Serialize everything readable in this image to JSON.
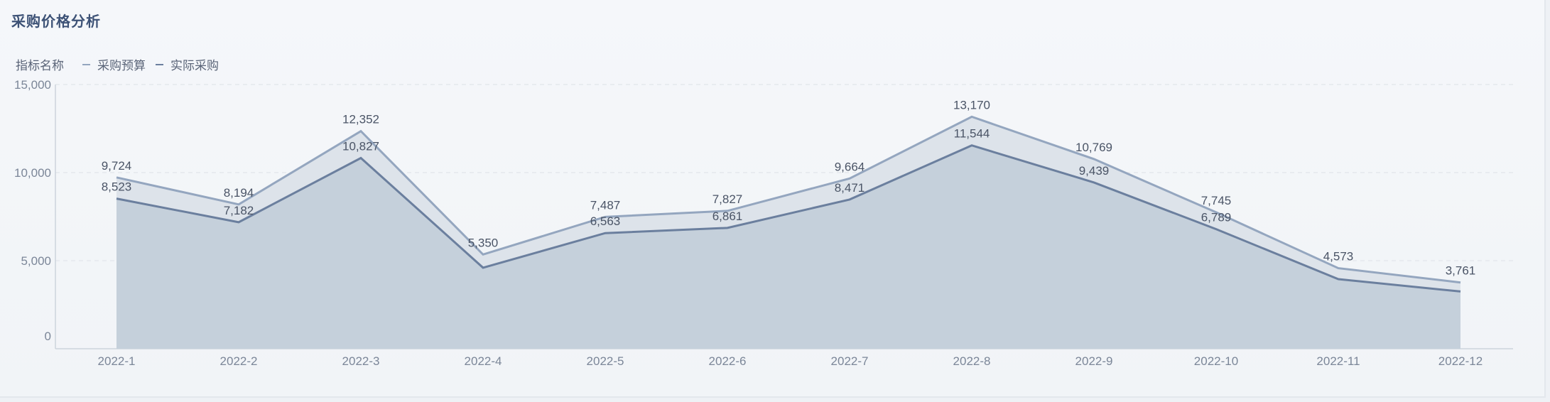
{
  "title": "采购价格分析",
  "legend": {
    "title": "指标名称",
    "items": [
      {
        "name": "采购预算",
        "color": "#94a6bf"
      },
      {
        "name": "实际采购",
        "color": "#6b7f9e"
      }
    ]
  },
  "colors": {
    "budget_line": "#94a6bf",
    "budget_fill": "#dde3ea",
    "actual_line": "#6b7f9e",
    "actual_fill": "#c5d0db",
    "grid": "#e1e5eb",
    "axis": "#cdd3dc"
  },
  "chart_data": {
    "type": "area",
    "title": "采购价格分析",
    "categories": [
      "2022-1",
      "2022-2",
      "2022-3",
      "2022-4",
      "2022-5",
      "2022-6",
      "2022-7",
      "2022-8",
      "2022-9",
      "2022-10",
      "2022-11",
      "2022-12"
    ],
    "series": [
      {
        "name": "采购预算",
        "values": [
          9724,
          8194,
          12352,
          5350,
          7487,
          7827,
          9664,
          13170,
          10769,
          7745,
          4573,
          3761
        ]
      },
      {
        "name": "实际采购",
        "values": [
          8523,
          7182,
          10827,
          4600,
          6563,
          6861,
          8471,
          11544,
          9439,
          6789,
          3950,
          3250
        ]
      }
    ],
    "data_labels": [
      [
        "9,724",
        "8,194",
        "12,352",
        "5,350",
        "7,487",
        "7,827",
        "9,664",
        "13,170",
        "10,769",
        "7,745",
        "4,573",
        "3,761"
      ],
      [
        "8,523",
        "7,182",
        "10,827",
        "",
        "6,563",
        "6,861",
        "8,471",
        "11,544",
        "9,439",
        "6,789",
        "",
        ""
      ]
    ],
    "yticks": [
      0,
      5000,
      10000,
      15000
    ],
    "ytick_labels": [
      "0",
      "5,000",
      "10,000",
      "15,000"
    ],
    "ylim": [
      0,
      15000
    ],
    "xlabel": "",
    "ylabel": "",
    "legend_position": "top-left",
    "grid": true
  }
}
